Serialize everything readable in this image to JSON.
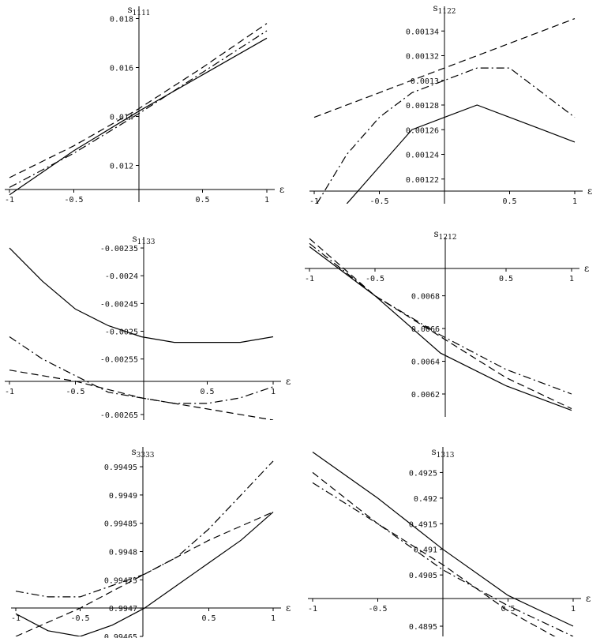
{
  "figure": {
    "style": {
      "line_color": "#000000",
      "background": "#ffffff"
    }
  },
  "chart_data": [
    {
      "id": "s1111",
      "type": "line",
      "title": "s1111",
      "xlabel": "ε",
      "xlim": [
        -1,
        1
      ],
      "ylim": [
        0.0105,
        0.0185
      ],
      "xticks": [
        -1,
        -0.5,
        0.5,
        1
      ],
      "xtick_labels": [
        "-1",
        "-0.5",
        "0.5",
        "1"
      ],
      "yticks": [
        0.012,
        0.014,
        0.016,
        0.018
      ],
      "ytick_labels": [
        "0.012",
        "0.014",
        "0.016",
        "0.018"
      ],
      "series": [
        {
          "name": "solid",
          "dash": "solid",
          "x": [
            -1,
            -0.5,
            0,
            0.5,
            1
          ],
          "y": [
            0.0108,
            0.0126,
            0.0142,
            0.0157,
            0.0172
          ]
        },
        {
          "name": "dashed",
          "dash": "dashed",
          "x": [
            -1,
            -0.5,
            0,
            0.5,
            1
          ],
          "y": [
            0.0115,
            0.0128,
            0.0143,
            0.016,
            0.0178
          ]
        },
        {
          "name": "dash-dot",
          "dash": "dashdot",
          "x": [
            -1,
            -0.5,
            0,
            0.5,
            1
          ],
          "y": [
            0.0111,
            0.0125,
            0.0141,
            0.0158,
            0.0175
          ]
        }
      ]
    },
    {
      "id": "s1122",
      "type": "line",
      "title": "s1122",
      "xlabel": "ε",
      "xlim": [
        -1,
        1
      ],
      "ylim": [
        0.0012,
        0.00136
      ],
      "xticks": [
        -1,
        -0.5,
        0.5,
        1
      ],
      "xtick_labels": [
        "-1",
        "-0.5",
        "0.5",
        "1"
      ],
      "yticks": [
        0.00122,
        0.00124,
        0.00126,
        0.00128,
        0.0013,
        0.00132,
        0.00134
      ],
      "ytick_labels": [
        "0.00122",
        "0.00124",
        "0.00126",
        "0.00128",
        "0.0013",
        "0.00132",
        "0.00134"
      ],
      "series": [
        {
          "name": "solid",
          "dash": "solid",
          "x": [
            -0.75,
            -0.5,
            -0.25,
            0,
            0.25,
            0.5,
            0.75,
            1
          ],
          "y": [
            0.0012,
            0.00123,
            0.00126,
            0.00127,
            0.00128,
            0.00127,
            0.00126,
            0.00125
          ]
        },
        {
          "name": "dashed",
          "dash": "dashed",
          "x": [
            -1,
            -0.5,
            0,
            0.5,
            1
          ],
          "y": [
            0.00127,
            0.00129,
            0.00131,
            0.00133,
            0.00135
          ]
        },
        {
          "name": "dash-dot",
          "dash": "dashdot",
          "x": [
            -0.98,
            -0.75,
            -0.5,
            -0.25,
            0,
            0.25,
            0.5,
            0.75,
            1
          ],
          "y": [
            0.0012,
            0.00124,
            0.00127,
            0.00129,
            0.0013,
            0.00131,
            0.00131,
            0.00129,
            0.00127
          ]
        }
      ]
    },
    {
      "id": "s1133",
      "type": "line",
      "title": "s1133",
      "xlabel": "ε",
      "xlim": [
        -1,
        1
      ],
      "ylim": [
        -0.00266,
        -0.00233
      ],
      "xticks": [
        -1,
        -0.5,
        0.5,
        1
      ],
      "xtick_labels": [
        "-1",
        "-0.5",
        "0.5",
        "1"
      ],
      "yticks": [
        -0.00235,
        -0.0024,
        -0.00245,
        -0.0025,
        -0.00255,
        -0.00265
      ],
      "ytick_labels": [
        "-0.00235",
        "-0.0024",
        "-0.00245",
        "-0.0025",
        "-0.00255",
        "-0.00265"
      ],
      "series": [
        {
          "name": "solid",
          "dash": "solid",
          "x": [
            -1,
            -0.75,
            -0.5,
            -0.25,
            0,
            0.25,
            0.5,
            0.75,
            1
          ],
          "y": [
            -0.00235,
            -0.00241,
            -0.00246,
            -0.00249,
            -0.00251,
            -0.00252,
            -0.00252,
            -0.00252,
            -0.00251
          ]
        },
        {
          "name": "dashed",
          "dash": "dashed",
          "x": [
            -1,
            -0.5,
            0,
            0.5,
            1
          ],
          "y": [
            -0.00257,
            -0.00259,
            -0.00262,
            -0.00264,
            -0.00266
          ]
        },
        {
          "name": "dash-dot",
          "dash": "dashdot",
          "x": [
            -1,
            -0.75,
            -0.5,
            -0.25,
            0,
            0.25,
            0.5,
            0.75,
            1
          ],
          "y": [
            -0.00251,
            -0.00255,
            -0.00258,
            -0.00261,
            -0.00262,
            -0.00263,
            -0.00263,
            -0.00262,
            -0.0026
          ]
        }
      ]
    },
    {
      "id": "s1212",
      "type": "line",
      "title": "s1212",
      "xlabel": "ε",
      "xlim": [
        -1,
        1
      ],
      "ylim": [
        0.00606,
        0.00716
      ],
      "xticks": [
        -1,
        -0.5,
        0.5,
        1
      ],
      "xtick_labels": [
        "-1",
        "-0.5",
        "0.5",
        "1"
      ],
      "yticks": [
        0.0062,
        0.0064,
        0.0066,
        0.0068
      ],
      "ytick_labels": [
        "0.0062",
        "0.0064",
        "0.0066",
        "0.0068"
      ],
      "series": [
        {
          "name": "solid",
          "dash": "solid",
          "x": [
            -1,
            -0.5,
            0,
            0.5,
            1
          ],
          "y": [
            0.0071,
            0.0068,
            0.00645,
            0.00625,
            0.0061
          ]
        },
        {
          "name": "dashed",
          "dash": "dashed",
          "x": [
            -1,
            -0.5,
            0,
            0.5,
            1
          ],
          "y": [
            0.00715,
            0.0068,
            0.00655,
            0.0063,
            0.00611
          ]
        },
        {
          "name": "dash-dot",
          "dash": "dashdot",
          "x": [
            -1,
            -0.5,
            0,
            0.5,
            1
          ],
          "y": [
            0.00712,
            0.0068,
            0.00656,
            0.00635,
            0.0062
          ]
        }
      ]
    },
    {
      "id": "s3333",
      "type": "line",
      "title": "s3333",
      "xlabel": "ε",
      "xlim": [
        -1,
        1
      ],
      "ylim": [
        0.99465,
        0.994985
      ],
      "xticks": [
        -1,
        -0.5,
        0.5,
        1
      ],
      "xtick_labels": [
        "-1",
        "-0.5",
        "0.5",
        "1"
      ],
      "yticks": [
        0.99465,
        0.9947,
        0.99475,
        0.9948,
        0.99485,
        0.9949,
        0.99495
      ],
      "ytick_labels": [
        "0.99465",
        "0.9947",
        "0.99475",
        "0.9948",
        "0.99485",
        "0.9949",
        "0.99495"
      ],
      "series": [
        {
          "name": "solid",
          "dash": "solid",
          "x": [
            -1,
            -0.75,
            -0.5,
            -0.25,
            0,
            0.25,
            0.5,
            0.75,
            1
          ],
          "y": [
            0.99469,
            0.99466,
            0.99465,
            0.99467,
            0.9947,
            0.99474,
            0.99478,
            0.99482,
            0.99487
          ]
        },
        {
          "name": "dashed",
          "dash": "dashed",
          "x": [
            -1,
            -0.5,
            0,
            0.5,
            1
          ],
          "y": [
            0.99465,
            0.9947,
            0.99476,
            0.99482,
            0.99487
          ]
        },
        {
          "name": "dash-dot",
          "dash": "dashdot",
          "x": [
            -1,
            -0.75,
            -0.5,
            -0.25,
            0,
            0.25,
            0.5,
            0.75,
            1
          ],
          "y": [
            0.99473,
            0.99472,
            0.99472,
            0.99474,
            0.99476,
            0.99479,
            0.99484,
            0.9949,
            0.99496
          ]
        }
      ]
    },
    {
      "id": "s1313",
      "type": "line",
      "title": "s1313",
      "xlabel": "ε",
      "xlim": [
        -1,
        1
      ],
      "ylim": [
        0.4893,
        0.493
      ],
      "xticks": [
        -1,
        -0.5,
        0.5,
        1
      ],
      "xtick_labels": [
        "-1",
        "-0.5",
        "0.5",
        "1"
      ],
      "yticks": [
        0.4895,
        0.4905,
        0.491,
        0.4915,
        0.492,
        0.4925
      ],
      "ytick_labels": [
        "0.4895",
        "0.4905",
        "0.491",
        "0.4915",
        "0.492",
        "0.4925"
      ],
      "series": [
        {
          "name": "solid",
          "dash": "solid",
          "x": [
            -1,
            -0.5,
            0,
            0.5,
            1
          ],
          "y": [
            0.4929,
            0.492,
            0.491,
            0.4901,
            0.4895
          ]
        },
        {
          "name": "dashed",
          "dash": "dashed",
          "x": [
            -1,
            -0.5,
            0,
            0.5,
            1
          ],
          "y": [
            0.4925,
            0.4915,
            0.4907,
            0.4898,
            0.4891
          ]
        },
        {
          "name": "dash-dot",
          "dash": "dashdot",
          "x": [
            -1,
            -0.5,
            0,
            0.5,
            1
          ],
          "y": [
            0.4923,
            0.4915,
            0.4906,
            0.4899,
            0.4893
          ]
        }
      ]
    }
  ]
}
